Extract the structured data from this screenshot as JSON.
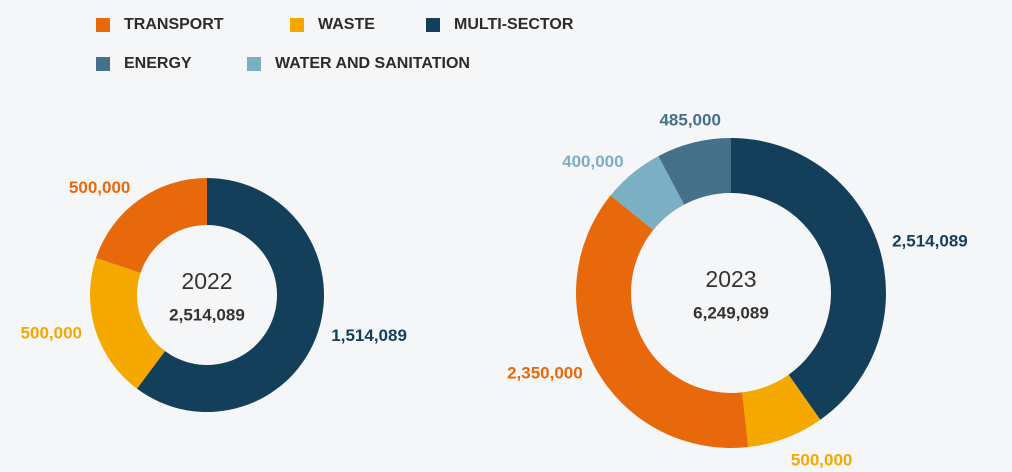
{
  "legend": [
    {
      "name": "TRANSPORT",
      "color": "#e8690b"
    },
    {
      "name": "WASTE",
      "color": "#f5a800"
    },
    {
      "name": "MULTI-SECTOR",
      "color": "#133f5a"
    },
    {
      "name": "ENERGY",
      "color": "#44708a"
    },
    {
      "name": "WATER AND SANITATION",
      "color": "#7aafc4"
    }
  ],
  "chart_data": [
    {
      "type": "pie",
      "title": "2022",
      "total": {
        "value": 2514089,
        "label": "2,514,089"
      },
      "categories": [
        "MULTI-SECTOR",
        "WASTE",
        "TRANSPORT"
      ],
      "values": [
        1514089,
        500000,
        500000
      ],
      "value_labels": [
        "1,514,089",
        "500,000",
        "500,000"
      ]
    },
    {
      "type": "pie",
      "title": "2023",
      "total": {
        "value": 6249089,
        "label": "6,249,089"
      },
      "categories": [
        "MULTI-SECTOR",
        "WASTE",
        "TRANSPORT",
        "WATER AND SANITATION",
        "ENERGY"
      ],
      "values": [
        2514089,
        500000,
        2350000,
        400000,
        485000
      ],
      "value_labels": [
        "2,514,089",
        "500,000",
        "2,350,000",
        "400,000",
        "485,000"
      ]
    }
  ]
}
